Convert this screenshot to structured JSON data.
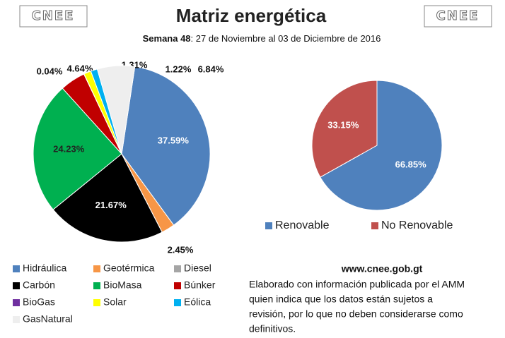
{
  "logo": "CNEE",
  "chart_data": [
    {
      "type": "pie",
      "title": "Matriz energética",
      "subtitle_bold": "Semana 48",
      "subtitle": ": 27 de Noviembre al 03 de Diciembre de 2016",
      "categories": [
        "Hidráulica",
        "Geotérmica",
        "Diesel",
        "Carbón",
        "BioMasa",
        "Búnker",
        "BioGas",
        "Solar",
        "Eólica",
        "GasNatural"
      ],
      "values": [
        37.59,
        2.45,
        0,
        21.67,
        24.23,
        4.64,
        0.04,
        1.31,
        1.22,
        6.84
      ],
      "value_labels": [
        "37.59%",
        "2.45%",
        null,
        "21.67%",
        "24.23%",
        "4.64%",
        "0.04%",
        "1.31%",
        "1.22%",
        "6.84%"
      ],
      "colors": [
        "#4f81bd",
        "#f79646",
        "#a5a5a5",
        "#000000",
        "#00b050",
        "#c00000",
        "#7030a0",
        "#ffff00",
        "#00b0f0",
        "#eeeeee"
      ],
      "legend": "bottom-left"
    },
    {
      "type": "pie",
      "categories": [
        "Renovable",
        "No Renovable"
      ],
      "values": [
        66.85,
        33.15
      ],
      "value_labels": [
        "66.85%",
        "33.15%"
      ],
      "colors": [
        "#4f81bd",
        "#c0504d"
      ],
      "legend": "bottom"
    }
  ],
  "footer": {
    "url": "www.cnee.gob.gt",
    "note": [
      "Elaborado con información publicada por el AMM",
      "quien indica que los datos están sujetos a",
      "revisión, por lo que no deben considerarse como",
      "definitivos."
    ]
  }
}
